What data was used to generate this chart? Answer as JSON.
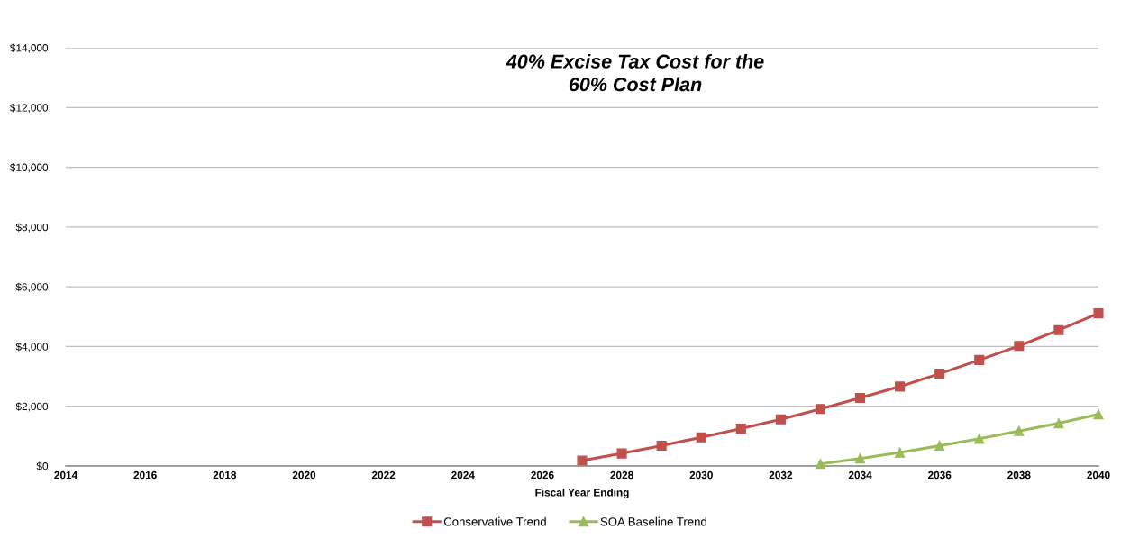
{
  "chart_data": {
    "type": "line",
    "title": "40% Excise Tax Cost for the\n60% Cost Plan",
    "xlabel": "Fiscal Year Ending",
    "series": [
      {
        "name": "Conservative Trend",
        "color": "#c0504d",
        "marker": "square",
        "x": [
          2027,
          2028,
          2029,
          2030,
          2031,
          2032,
          2033,
          2034,
          2035,
          2036,
          2037,
          2038,
          2039,
          2040
        ],
        "values": [
          180,
          420,
          680,
          960,
          1250,
          1560,
          1910,
          2280,
          2660,
          3090,
          3550,
          4020,
          4550,
          5110
        ]
      },
      {
        "name": "SOA Baseline Trend",
        "color": "#9bbb59",
        "marker": "triangle",
        "x": [
          2033,
          2034,
          2035,
          2036,
          2037,
          2038,
          2039,
          2040
        ],
        "values": [
          70,
          250,
          450,
          680,
          910,
          1170,
          1430,
          1730
        ]
      }
    ],
    "line_style": "solid",
    "xlim": [
      2014,
      2040
    ],
    "xticks": [
      2014,
      2016,
      2018,
      2020,
      2022,
      2024,
      2026,
      2028,
      2030,
      2032,
      2034,
      2036,
      2038,
      2040
    ],
    "ylim": [
      0,
      14000
    ],
    "yticks": [
      {
        "value": 0,
        "label": "$0"
      },
      {
        "value": 2000,
        "label": "$2,000"
      },
      {
        "value": 4000,
        "label": "$4,000"
      },
      {
        "value": 6000,
        "label": "$6,000"
      },
      {
        "value": 8000,
        "label": "$8,000"
      },
      {
        "value": 10000,
        "label": "$10,000"
      },
      {
        "value": 12000,
        "label": "$12,000"
      },
      {
        "value": 14000,
        "label": "$14,000"
      }
    ],
    "grid": "y",
    "legend": "bottom"
  }
}
